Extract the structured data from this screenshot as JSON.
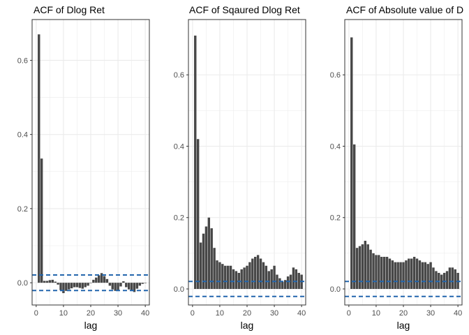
{
  "chart_data": [
    {
      "type": "bar",
      "title": "ACF of Dlog Ret",
      "xlabel": "lag",
      "ylabel": "",
      "xlim": [
        -1.5,
        41.5
      ],
      "ylim": [
        -0.06,
        0.71
      ],
      "xticks": [
        0,
        10,
        20,
        30,
        40
      ],
      "yticks": [
        0.0,
        0.2,
        0.4,
        0.6
      ],
      "ytick_labels": [
        "0.0",
        "0.2",
        "0.4",
        "0.6"
      ],
      "grid": true,
      "x": [
        1,
        2,
        3,
        4,
        5,
        6,
        7,
        8,
        9,
        10,
        11,
        12,
        13,
        14,
        15,
        16,
        17,
        18,
        19,
        20,
        21,
        22,
        23,
        24,
        25,
        26,
        27,
        28,
        29,
        30,
        31,
        32,
        33,
        34,
        35,
        36,
        37,
        38,
        39,
        40
      ],
      "values": [
        0.67,
        0.335,
        0.005,
        0.005,
        0.007,
        0.008,
        0.003,
        -0.005,
        -0.02,
        -0.028,
        -0.022,
        -0.018,
        -0.015,
        -0.012,
        -0.012,
        -0.014,
        -0.016,
        -0.012,
        -0.008,
        0.0,
        0.008,
        0.014,
        0.02,
        0.026,
        0.018,
        0.01,
        -0.008,
        -0.018,
        -0.022,
        -0.02,
        -0.01,
        0.004,
        -0.012,
        -0.018,
        -0.022,
        -0.025,
        -0.016,
        -0.008,
        -0.003,
        0.0
      ],
      "ci": [
        0.021,
        -0.021
      ]
    },
    {
      "type": "bar",
      "title": "ACF of Sqaured Dlog Ret",
      "xlabel": "lag",
      "ylabel": "",
      "xlim": [
        -1.5,
        41.5
      ],
      "ylim": [
        -0.045,
        0.755
      ],
      "xticks": [
        0,
        10,
        20,
        30,
        40
      ],
      "yticks": [
        0.0,
        0.2,
        0.4,
        0.6
      ],
      "ytick_labels": [
        "0.0",
        "0.2",
        "0.4",
        "0.6"
      ],
      "grid": true,
      "x": [
        1,
        2,
        3,
        4,
        5,
        6,
        7,
        8,
        9,
        10,
        11,
        12,
        13,
        14,
        15,
        16,
        17,
        18,
        19,
        20,
        21,
        22,
        23,
        24,
        25,
        26,
        27,
        28,
        29,
        30,
        31,
        32,
        33,
        34,
        35,
        36,
        37,
        38,
        39,
        40
      ],
      "values": [
        0.71,
        0.42,
        0.13,
        0.155,
        0.175,
        0.2,
        0.17,
        0.115,
        0.08,
        0.075,
        0.07,
        0.065,
        0.065,
        0.065,
        0.055,
        0.05,
        0.045,
        0.055,
        0.06,
        0.065,
        0.075,
        0.085,
        0.09,
        0.095,
        0.085,
        0.075,
        0.065,
        0.05,
        0.055,
        0.065,
        0.04,
        0.03,
        0.02,
        0.025,
        0.035,
        0.04,
        0.06,
        0.055,
        0.045,
        0.04
      ],
      "ci": [
        0.021,
        -0.021
      ]
    },
    {
      "type": "bar",
      "title": "ACF of Absolute value of D",
      "xlabel": "lag",
      "ylabel": "",
      "xlim": [
        -1.5,
        41.5
      ],
      "ylim": [
        -0.045,
        0.755
      ],
      "xticks": [
        0,
        10,
        20,
        30,
        40
      ],
      "yticks": [
        0.0,
        0.2,
        0.4,
        0.6
      ],
      "ytick_labels": [
        "0.0",
        "0.2",
        "0.4",
        "0.6"
      ],
      "grid": true,
      "x": [
        1,
        2,
        3,
        4,
        5,
        6,
        7,
        8,
        9,
        10,
        11,
        12,
        13,
        14,
        15,
        16,
        17,
        18,
        19,
        20,
        21,
        22,
        23,
        24,
        25,
        26,
        27,
        28,
        29,
        30,
        31,
        32,
        33,
        34,
        35,
        36,
        37,
        38,
        39,
        40
      ],
      "values": [
        0.705,
        0.405,
        0.115,
        0.12,
        0.125,
        0.135,
        0.125,
        0.11,
        0.1,
        0.095,
        0.095,
        0.09,
        0.09,
        0.09,
        0.085,
        0.08,
        0.075,
        0.075,
        0.075,
        0.075,
        0.08,
        0.085,
        0.085,
        0.09,
        0.085,
        0.08,
        0.075,
        0.075,
        0.07,
        0.075,
        0.06,
        0.05,
        0.045,
        0.04,
        0.045,
        0.05,
        0.06,
        0.06,
        0.055,
        0.045
      ],
      "ci": [
        0.021,
        -0.021
      ]
    }
  ],
  "colors": {
    "bar": "#474747",
    "ci_line": "#2366ad",
    "grid": "#ebebeb",
    "panel_border": "#333333",
    "tick_text": "#4d4d4d",
    "title_text": "#000000"
  }
}
